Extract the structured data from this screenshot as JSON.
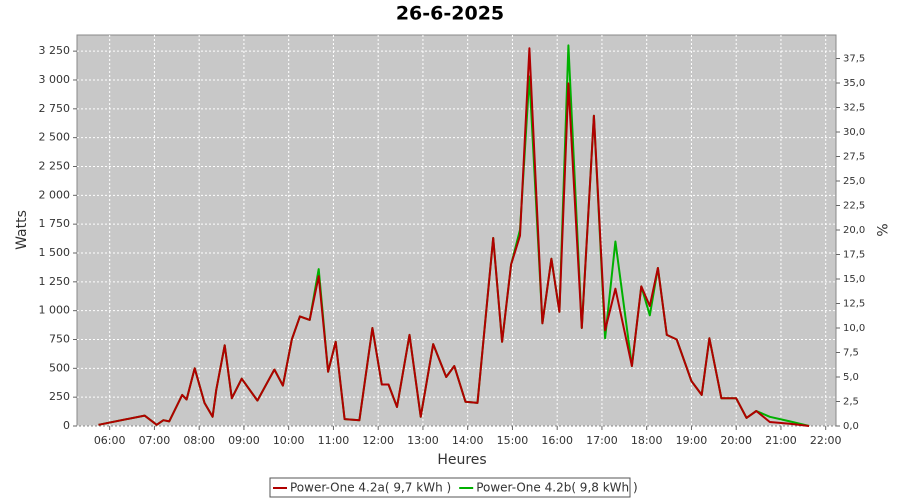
{
  "chart_data": {
    "type": "line",
    "title": "26-6-2025",
    "x_label": "Heures",
    "y_label": "Watts",
    "y2_label": "%",
    "x": [
      5.75,
      6.78,
      7.05,
      7.2,
      7.33,
      7.62,
      7.72,
      7.9,
      8.12,
      8.3,
      8.38,
      8.57,
      8.73,
      8.95,
      9.3,
      9.68,
      9.87,
      10.07,
      10.25,
      10.47,
      10.67,
      10.88,
      11.05,
      11.25,
      11.58,
      11.87,
      12.08,
      12.23,
      12.42,
      12.7,
      12.95,
      13.23,
      13.52,
      13.7,
      13.95,
      14.22,
      14.57,
      14.77,
      14.97,
      15.17,
      15.38,
      15.67,
      15.87,
      16.05,
      16.25,
      16.55,
      16.82,
      17.07,
      17.3,
      17.67,
      17.88,
      18.07,
      18.25,
      18.45,
      18.67,
      19.0,
      19.23,
      19.4,
      19.67,
      20.0,
      20.23,
      20.45,
      20.75,
      21.2,
      21.63
    ],
    "series": [
      {
        "name": "Power-One 4.2a( 9,7 kWh )",
        "color": "#b00000",
        "values": [
          10,
          90,
          10,
          50,
          40,
          270,
          230,
          500,
          200,
          80,
          310,
          700,
          240,
          410,
          220,
          490,
          350,
          750,
          950,
          920,
          1300,
          470,
          730,
          60,
          50,
          850,
          360,
          360,
          165,
          790,
          80,
          710,
          425,
          520,
          210,
          200,
          1630,
          730,
          1400,
          1650,
          3275,
          890,
          1450,
          990,
          2970,
          850,
          2690,
          830,
          1190,
          520,
          1210,
          1040,
          1370,
          790,
          750,
          390,
          270,
          760,
          240,
          240,
          70,
          130,
          35,
          20,
          0
        ]
      },
      {
        "name": "Power-One 4.2b( 9,8 kWh )",
        "color": "#00b000",
        "values": [
          10,
          90,
          10,
          50,
          40,
          270,
          230,
          500,
          200,
          80,
          310,
          700,
          240,
          410,
          220,
          490,
          350,
          750,
          950,
          920,
          1360,
          470,
          730,
          60,
          50,
          850,
          360,
          360,
          165,
          790,
          80,
          710,
          425,
          520,
          210,
          200,
          1630,
          730,
          1400,
          1700,
          3030,
          890,
          1450,
          990,
          3300,
          850,
          2690,
          760,
          1600,
          520,
          1210,
          960,
          1370,
          790,
          750,
          390,
          270,
          760,
          240,
          240,
          70,
          130,
          80,
          40,
          0
        ]
      }
    ],
    "xlim": [
      5.27,
      22.23
    ],
    "xticks": [
      {
        "value": 6,
        "label": "06:00"
      },
      {
        "value": 7,
        "label": "07:00"
      },
      {
        "value": 8,
        "label": "08:00"
      },
      {
        "value": 9,
        "label": "09:00"
      },
      {
        "value": 10,
        "label": "10:00"
      },
      {
        "value": 11,
        "label": "11:00"
      },
      {
        "value": 12,
        "label": "12:00"
      },
      {
        "value": 13,
        "label": "13:00"
      },
      {
        "value": 14,
        "label": "14:00"
      },
      {
        "value": 15,
        "label": "15:00"
      },
      {
        "value": 16,
        "label": "16:00"
      },
      {
        "value": 17,
        "label": "17:00"
      },
      {
        "value": 18,
        "label": "18:00"
      },
      {
        "value": 19,
        "label": "19:00"
      },
      {
        "value": 20,
        "label": "20:00"
      },
      {
        "value": 21,
        "label": "21:00"
      },
      {
        "value": 22,
        "label": "22:00"
      }
    ],
    "ylim": [
      0,
      3390
    ],
    "yticks": [
      0,
      250,
      500,
      750,
      {
        "value": 1000,
        "label": "1 000"
      },
      {
        "value": 1250,
        "label": "1 250"
      },
      {
        "value": 1500,
        "label": "1 500"
      },
      {
        "value": 1750,
        "label": "1 750"
      },
      {
        "value": 2000,
        "label": "2 000"
      },
      {
        "value": 2250,
        "label": "2 250"
      },
      {
        "value": 2500,
        "label": "2 500"
      },
      {
        "value": 2750,
        "label": "2 750"
      },
      {
        "value": 3000,
        "label": "3 000"
      },
      {
        "value": 3250,
        "label": "3 250"
      }
    ],
    "y2lim": [
      0,
      39.9
    ],
    "y2ticks": [
      {
        "value": 0,
        "label": "0,0"
      },
      {
        "value": 2.5,
        "label": "2,5"
      },
      {
        "value": 5,
        "label": "5,0"
      },
      {
        "value": 7.5,
        "label": "7,5"
      },
      {
        "value": 10,
        "label": "10,0"
      },
      {
        "value": 12.5,
        "label": "12,5"
      },
      {
        "value": 15,
        "label": "15,0"
      },
      {
        "value": 17.5,
        "label": "17,5"
      },
      {
        "value": 20,
        "label": "20,0"
      },
      {
        "value": 22.5,
        "label": "22,5"
      },
      {
        "value": 25,
        "label": "25,0"
      },
      {
        "value": 27.5,
        "label": "27,5"
      },
      {
        "value": 30,
        "label": "30,0"
      },
      {
        "value": 32.5,
        "label": "32,5"
      },
      {
        "value": 35,
        "label": "35,0"
      },
      {
        "value": 37.5,
        "label": "37,5"
      }
    ],
    "grid": true
  }
}
